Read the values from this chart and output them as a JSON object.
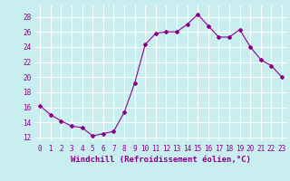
{
  "x": [
    0,
    1,
    2,
    3,
    4,
    5,
    6,
    7,
    8,
    9,
    10,
    11,
    12,
    13,
    14,
    15,
    16,
    17,
    18,
    19,
    20,
    21,
    22,
    23
  ],
  "y": [
    16.2,
    15.0,
    14.2,
    13.5,
    13.3,
    12.2,
    12.5,
    12.8,
    15.3,
    19.2,
    24.3,
    25.8,
    26.0,
    26.0,
    27.0,
    28.3,
    26.8,
    25.3,
    25.3,
    26.3,
    24.0,
    22.3,
    21.5,
    20.0
  ],
  "line_color": "#8b008b",
  "marker": "D",
  "marker_size": 2.0,
  "background_color": "#c8eef0",
  "grid_color": "#ffffff",
  "xlabel": "Windchill (Refroidissement éolien,°C)",
  "xlabel_fontsize": 6.5,
  "tick_fontsize": 5.5,
  "ylim": [
    11.5,
    29.5
  ],
  "xlim": [
    -0.5,
    23.5
  ],
  "yticks": [
    12,
    14,
    16,
    18,
    20,
    22,
    24,
    26,
    28
  ],
  "xticks": [
    0,
    1,
    2,
    3,
    4,
    5,
    6,
    7,
    8,
    9,
    10,
    11,
    12,
    13,
    14,
    15,
    16,
    17,
    18,
    19,
    20,
    21,
    22,
    23
  ]
}
